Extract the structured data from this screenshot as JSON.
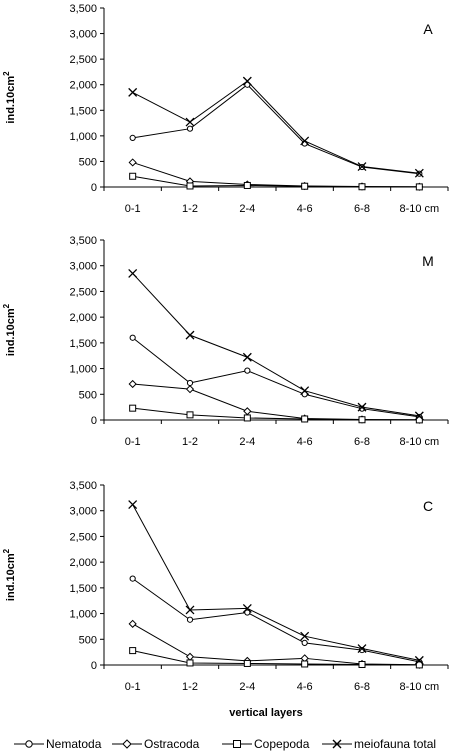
{
  "figure": {
    "x_title": "vertical layers",
    "legend": [
      {
        "name": "Nematoda",
        "marker": "circle"
      },
      {
        "name": "Ostracoda",
        "marker": "diamond"
      },
      {
        "name": "Copepoda",
        "marker": "square"
      },
      {
        "name": "meiofauna total",
        "marker": "x"
      }
    ]
  },
  "chart_data": [
    {
      "type": "line",
      "panel_label": "A",
      "categories": [
        "0-1",
        "1-2",
        "2-4",
        "4-6",
        "6-8",
        "8-10 cm"
      ],
      "ylabel": "ind.10cm",
      "ylabel_superscript": "2",
      "ylim": [
        0,
        3500
      ],
      "yticks": [
        "0",
        "500",
        "1,000",
        "1,500",
        "2,000",
        "2,500",
        "3,000",
        "3,500"
      ],
      "grid": false,
      "series": [
        {
          "name": "Nematoda",
          "values": [
            960,
            1140,
            2000,
            850,
            390,
            260
          ]
        },
        {
          "name": "Ostracoda",
          "values": [
            480,
            110,
            50,
            20,
            10,
            5
          ]
        },
        {
          "name": "Copepoda",
          "values": [
            210,
            20,
            30,
            15,
            5,
            2
          ]
        },
        {
          "name": "meiofauna total",
          "values": [
            1850,
            1270,
            2070,
            900,
            400,
            270
          ]
        }
      ]
    },
    {
      "type": "line",
      "panel_label": "M",
      "categories": [
        "0-1",
        "1-2",
        "2-4",
        "4-6",
        "6-8",
        "8-10 cm"
      ],
      "ylabel": "ind.10cm",
      "ylabel_superscript": "2",
      "ylim": [
        0,
        3500
      ],
      "yticks": [
        "0",
        "500",
        "1,000",
        "1,500",
        "2,000",
        "2,500",
        "3,000",
        "3,500"
      ],
      "grid": false,
      "series": [
        {
          "name": "Nematoda",
          "values": [
            1600,
            720,
            960,
            500,
            220,
            60
          ]
        },
        {
          "name": "Ostracoda",
          "values": [
            700,
            600,
            170,
            30,
            10,
            5
          ]
        },
        {
          "name": "Copepoda",
          "values": [
            230,
            100,
            40,
            20,
            5,
            2
          ]
        },
        {
          "name": "meiofauna total",
          "values": [
            2850,
            1650,
            1220,
            570,
            250,
            80
          ]
        }
      ]
    },
    {
      "type": "line",
      "panel_label": "C",
      "categories": [
        "0-1",
        "1-2",
        "2-4",
        "4-6",
        "6-8",
        "8-10 cm"
      ],
      "ylabel": "ind.10cm",
      "ylabel_superscript": "2",
      "ylim": [
        0,
        3500
      ],
      "yticks": [
        "0",
        "500",
        "1,000",
        "1,500",
        "2,000",
        "2,500",
        "3,000",
        "3,500"
      ],
      "grid": false,
      "series": [
        {
          "name": "Nematoda",
          "values": [
            1680,
            880,
            1020,
            430,
            290,
            60
          ]
        },
        {
          "name": "Ostracoda",
          "values": [
            800,
            160,
            80,
            130,
            20,
            5
          ]
        },
        {
          "name": "Copepoda",
          "values": [
            280,
            40,
            30,
            20,
            10,
            2
          ]
        },
        {
          "name": "meiofauna total",
          "values": [
            3120,
            1070,
            1100,
            560,
            320,
            90
          ]
        }
      ]
    }
  ]
}
